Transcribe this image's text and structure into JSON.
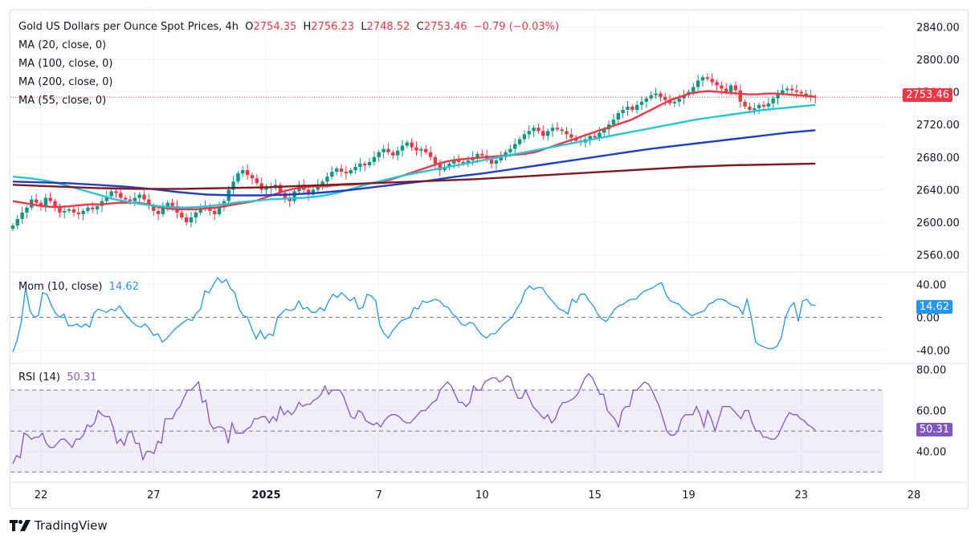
{
  "header": {
    "symbol": "Gold US Dollars per Ounce Spot Prices, 4h",
    "open_label": "O",
    "open": "2754.35",
    "high_label": "H",
    "high": "2756.23",
    "low_label": "L",
    "low": "2748.52",
    "close_label": "C",
    "close": "2753.46",
    "change": "−0.79 (−0.03%)"
  },
  "indicators": {
    "ma": [
      {
        "label": "MA (20, close, 0)",
        "color": "#f23645"
      },
      {
        "label": "MA (100, close, 0)",
        "color": "#1e3fc8"
      },
      {
        "label": "MA (200, close, 0)",
        "color": "#801922"
      },
      {
        "label": "MA (55, close, 0)",
        "color": "#26c6da"
      }
    ],
    "mom": {
      "label": "Mom (10, close)",
      "value": "14.62",
      "color": "#2196f3"
    },
    "rsi": {
      "label": "RSI (14)",
      "value": "50.31",
      "color": "#7e57c2"
    }
  },
  "price_badge": {
    "value": "2753.46",
    "color": "#f23645"
  },
  "mom_badge": {
    "value": "14.62",
    "color": "#2196f3"
  },
  "rsi_badge": {
    "value": "50.31",
    "color": "#7e57c2"
  },
  "brand": {
    "name": "TradingView"
  },
  "chart_data": [
    {
      "type": "candlestick",
      "title": "Gold US Dollars per Ounce Spot Prices, 4h",
      "ylim": [
        2540,
        2860
      ],
      "yticks": [
        "2840.00",
        "2800.00",
        "2760.00",
        "2720.00",
        "2680.00",
        "2640.00",
        "2600.00",
        "2560.00"
      ],
      "ytick_values": [
        2840,
        2800,
        2760,
        2720,
        2680,
        2640,
        2600,
        2560
      ],
      "xticks": [
        {
          "label": "22",
          "index": 6,
          "bold": false
        },
        {
          "label": "27",
          "index": 30,
          "bold": false
        },
        {
          "label": "2025",
          "index": 54,
          "bold": true
        },
        {
          "label": "7",
          "index": 78,
          "bold": false
        },
        {
          "label": "10",
          "index": 100,
          "bold": false
        },
        {
          "label": "15",
          "index": 124,
          "bold": false
        },
        {
          "label": "19",
          "index": 144,
          "bold": false
        },
        {
          "label": "23",
          "index": 168,
          "bold": false
        },
        {
          "label": "28",
          "index": 192,
          "bold": false
        }
      ],
      "last_price": 2753.46,
      "up_color": "#089981",
      "down_color": "#f23645",
      "closes": [
        2596,
        2604,
        2612,
        2618,
        2628,
        2624,
        2620,
        2630,
        2626,
        2618,
        2612,
        2614,
        2616,
        2612,
        2610,
        2614,
        2618,
        2616,
        2620,
        2626,
        2632,
        2638,
        2636,
        2630,
        2628,
        2626,
        2630,
        2634,
        2628,
        2620,
        2614,
        2610,
        2618,
        2624,
        2620,
        2612,
        2606,
        2600,
        2606,
        2612,
        2618,
        2620,
        2614,
        2610,
        2618,
        2626,
        2640,
        2650,
        2660,
        2664,
        2658,
        2654,
        2648,
        2640,
        2644,
        2642,
        2646,
        2636,
        2630,
        2626,
        2638,
        2646,
        2640,
        2634,
        2640,
        2646,
        2650,
        2656,
        2662,
        2666,
        2662,
        2660,
        2664,
        2668,
        2672,
        2670,
        2674,
        2680,
        2686,
        2690,
        2686,
        2682,
        2688,
        2694,
        2698,
        2692,
        2688,
        2690,
        2686,
        2680,
        2672,
        2664,
        2668,
        2672,
        2676,
        2674,
        2672,
        2676,
        2680,
        2684,
        2682,
        2678,
        2672,
        2676,
        2680,
        2686,
        2690,
        2696,
        2702,
        2708,
        2712,
        2716,
        2712,
        2706,
        2712,
        2716,
        2714,
        2712,
        2708,
        2704,
        2700,
        2698,
        2702,
        2706,
        2704,
        2710,
        2714,
        2720,
        2726,
        2734,
        2738,
        2742,
        2738,
        2744,
        2748,
        2752,
        2756,
        2758,
        2754,
        2750,
        2746,
        2748,
        2752,
        2756,
        2760,
        2766,
        2774,
        2778,
        2776,
        2772,
        2768,
        2764,
        2760,
        2768,
        2762,
        2748,
        2742,
        2738,
        2740,
        2744,
        2742,
        2746,
        2752,
        2758,
        2762,
        2764,
        2762,
        2760,
        2758,
        2756,
        2754,
        2753.46
      ],
      "ma_series": [
        {
          "name": "MA 20",
          "color": "#f23645",
          "values": [
            2626,
            2624,
            2622,
            2620,
            2619,
            2619,
            2620,
            2621,
            2622,
            2622,
            2623,
            2624,
            2624,
            2624,
            2622,
            2619,
            2617,
            2616,
            2616,
            2616,
            2617,
            2618,
            2620,
            2622,
            2624,
            2626,
            2630,
            2634,
            2638,
            2641,
            2643,
            2644,
            2644,
            2645,
            2646,
            2646,
            2647,
            2648,
            2650,
            2652,
            2656,
            2660,
            2664,
            2668,
            2672,
            2675,
            2677,
            2678,
            2679,
            2680,
            2681,
            2682,
            2683,
            2684,
            2686,
            2690,
            2694,
            2698,
            2702,
            2706,
            2710,
            2714,
            2718,
            2722,
            2726,
            2732,
            2738,
            2744,
            2750,
            2754,
            2758,
            2760,
            2761,
            2760,
            2759,
            2758,
            2757,
            2757,
            2758,
            2758,
            2757,
            2756,
            2755,
            2754
          ]
        },
        {
          "name": "MA 55",
          "color": "#26c6da",
          "values": [
            2656,
            2654,
            2651,
            2646,
            2640,
            2634,
            2628,
            2624,
            2621,
            2619,
            2618,
            2619,
            2621,
            2624,
            2626,
            2628,
            2629,
            2630,
            2632,
            2636,
            2642,
            2648,
            2653,
            2658,
            2662,
            2666,
            2670,
            2674,
            2678,
            2682,
            2686,
            2690,
            2694,
            2698,
            2702,
            2706,
            2710,
            2714,
            2718,
            2722,
            2726,
            2729,
            2732,
            2735,
            2738,
            2740,
            2742,
            2744
          ]
        },
        {
          "name": "MA 100",
          "color": "#1e3fc8",
          "values": [
            2650,
            2649,
            2648,
            2646,
            2644,
            2641,
            2637,
            2634,
            2633,
            2633,
            2634,
            2636,
            2639,
            2643,
            2647,
            2651,
            2656,
            2660,
            2665,
            2670,
            2675,
            2680,
            2685,
            2690,
            2694,
            2698,
            2702,
            2706,
            2710,
            2713
          ]
        },
        {
          "name": "MA 200",
          "color": "#801922",
          "values": [
            2646,
            2644,
            2642,
            2641,
            2641,
            2642,
            2643,
            2645,
            2647,
            2649,
            2651,
            2653,
            2656,
            2659,
            2662,
            2665,
            2668,
            2670,
            2671,
            2672
          ]
        }
      ]
    },
    {
      "type": "line",
      "title": "Mom (10, close)",
      "ylim": [
        -55,
        55
      ],
      "yticks": [
        "40.00",
        "0.00",
        "-40.00"
      ],
      "ytick_values": [
        40,
        0,
        -40
      ],
      "zero_line": 0,
      "last_value": 14.62,
      "values": [
        -42,
        -28,
        -5,
        36,
        8,
        0,
        2,
        30,
        28,
        15,
        5,
        0,
        4,
        -10,
        -10,
        -8,
        -12,
        -8,
        -12,
        5,
        10,
        8,
        6,
        10,
        8,
        14,
        6,
        0,
        -6,
        -10,
        -12,
        -8,
        -14,
        -22,
        -20,
        -30,
        -26,
        -20,
        -14,
        -10,
        -6,
        -2,
        -4,
        5,
        10,
        32,
        30,
        40,
        48,
        42,
        46,
        35,
        30,
        10,
        2,
        0,
        -14,
        -26,
        -16,
        -26,
        -20,
        -22,
        0,
        5,
        10,
        8,
        10,
        20,
        10,
        12,
        6,
        6,
        12,
        8,
        20,
        28,
        24,
        30,
        25,
        20,
        24,
        10,
        12,
        28,
        26,
        20,
        -10,
        -20,
        -25,
        -16,
        -10,
        -4,
        -2,
        0,
        12,
        10,
        20,
        18,
        20,
        22,
        20,
        14,
        12,
        4,
        0,
        -8,
        -10,
        -6,
        -8,
        -16,
        -22,
        -25,
        -20,
        -20,
        -14,
        -8,
        -4,
        0,
        10,
        18,
        32,
        38,
        34,
        36,
        36,
        28,
        22,
        16,
        10,
        8,
        4,
        22,
        18,
        28,
        28,
        20,
        14,
        4,
        -2,
        -5,
        2,
        10,
        14,
        16,
        20,
        22,
        22,
        28,
        32,
        34,
        36,
        40,
        42,
        28,
        20,
        18,
        16,
        10,
        6,
        2,
        4,
        6,
        8,
        16,
        18,
        22,
        22,
        20,
        16,
        14,
        12,
        4,
        22,
        0,
        -30,
        -34,
        -36,
        -38,
        -38,
        -35,
        -25,
        0,
        12,
        18,
        -5,
        20,
        22,
        15,
        14.62
      ]
    },
    {
      "type": "line",
      "title": "RSI (14)",
      "ylim": [
        25,
        83
      ],
      "yticks": [
        "80.00",
        "60.00",
        "40.00"
      ],
      "ytick_values": [
        80,
        60,
        40
      ],
      "bands": [
        70,
        50,
        30
      ],
      "band_fill": "#7e57c2",
      "last_value": 50.31,
      "values": [
        34,
        38,
        37,
        49,
        48,
        46,
        47,
        47,
        49,
        44,
        42,
        42,
        44,
        46,
        46,
        44,
        42,
        46,
        46,
        48,
        53,
        52,
        54,
        60,
        58,
        57,
        57,
        52,
        44,
        46,
        43,
        49,
        50,
        44,
        44,
        36,
        40,
        40,
        39,
        45,
        44,
        56,
        56,
        56,
        60,
        62,
        66,
        70,
        70,
        72,
        74,
        64,
        65,
        54,
        51,
        52,
        52,
        51,
        44,
        54,
        49,
        49,
        49,
        51,
        52,
        56,
        56,
        57,
        57,
        54,
        57,
        55,
        62,
        58,
        60,
        58,
        60,
        64,
        62,
        63,
        63,
        65,
        66,
        68,
        72,
        68,
        70,
        70,
        70,
        67,
        62,
        57,
        56,
        60,
        59,
        55,
        54,
        53,
        54,
        52,
        55,
        57,
        58,
        58,
        57,
        55,
        54,
        54,
        56,
        58,
        60,
        60,
        62,
        64,
        65,
        70,
        72,
        74,
        72,
        68,
        64,
        64,
        62,
        64,
        72,
        70,
        70,
        74,
        75,
        76,
        76,
        74,
        75,
        77,
        76,
        70,
        66,
        66,
        70,
        66,
        62,
        60,
        58,
        56,
        58,
        54,
        56,
        61,
        64,
        64,
        65,
        66,
        68,
        72,
        76,
        78,
        76,
        72,
        68,
        68,
        60,
        58,
        56,
        52,
        60,
        62,
        62,
        70,
        70,
        72,
        74,
        73,
        70,
        66,
        62,
        56,
        50,
        48,
        48,
        50,
        56,
        58,
        58,
        58,
        62,
        58,
        52,
        60,
        56,
        50,
        56,
        62,
        62,
        62,
        60,
        58,
        56,
        60,
        60,
        54,
        50,
        50,
        47,
        47,
        46,
        46,
        48,
        52,
        56,
        59,
        58,
        58,
        56,
        55,
        53,
        52,
        50.31
      ]
    }
  ]
}
